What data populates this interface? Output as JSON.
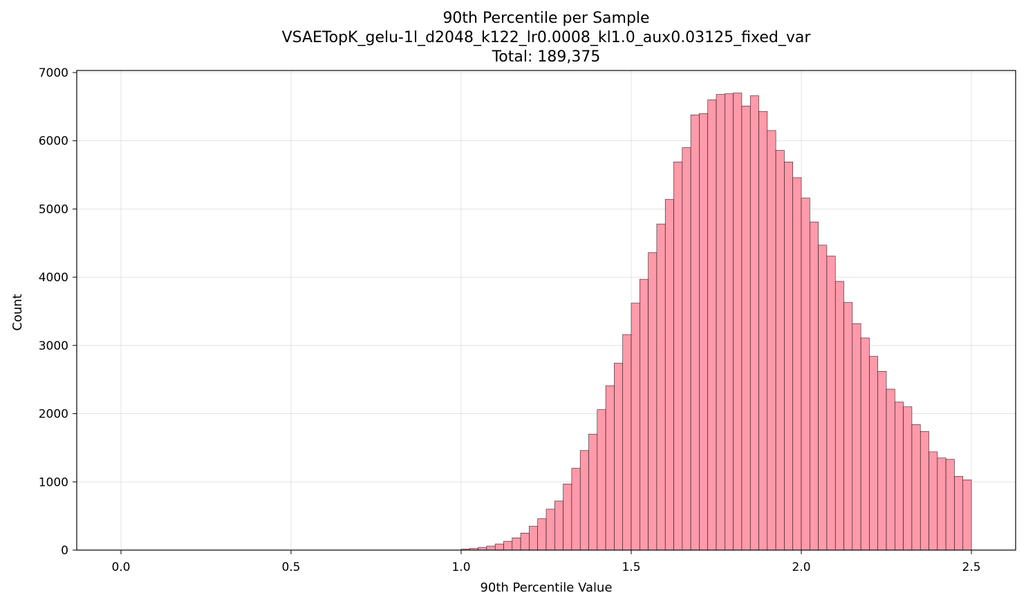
{
  "chart_data": {
    "type": "bar",
    "title_lines": [
      "90th Percentile per Sample",
      "VSAETopK_gelu-1l_d2048_k122_lr0.0008_kl1.0_aux0.03125_fixed_var",
      "Total: 189,375"
    ],
    "xlabel": "90th Percentile Value",
    "ylabel": "Count",
    "xlim": [
      -0.13,
      2.63
    ],
    "ylim": [
      0,
      7030
    ],
    "xticks": [
      0.0,
      0.5,
      1.0,
      1.5,
      2.0,
      2.5
    ],
    "xtick_labels": [
      "0.0",
      "0.5",
      "1.0",
      "1.5",
      "2.0",
      "2.5"
    ],
    "yticks": [
      0,
      1000,
      2000,
      3000,
      4000,
      5000,
      6000,
      7000
    ],
    "ytick_labels": [
      "0",
      "1000",
      "2000",
      "3000",
      "4000",
      "5000",
      "6000",
      "7000"
    ],
    "grid": true,
    "bar_color": "#ff9aaa",
    "bins_start": 1.0,
    "bin_width": 0.025,
    "values": [
      15,
      25,
      40,
      60,
      90,
      130,
      180,
      250,
      350,
      460,
      600,
      720,
      970,
      1200,
      1460,
      1700,
      2060,
      2410,
      2740,
      3160,
      3620,
      3970,
      4360,
      4780,
      5140,
      5690,
      5900,
      6380,
      6400,
      6600,
      6680,
      6690,
      6700,
      6510,
      6660,
      6430,
      6150,
      5860,
      5690,
      5460,
      5160,
      4810,
      4470,
      4310,
      3940,
      3630,
      3320,
      3110,
      2840,
      2620,
      2360,
      2170,
      2100,
      1840,
      1740,
      1440,
      1350,
      1330,
      1080,
      1030
    ]
  }
}
